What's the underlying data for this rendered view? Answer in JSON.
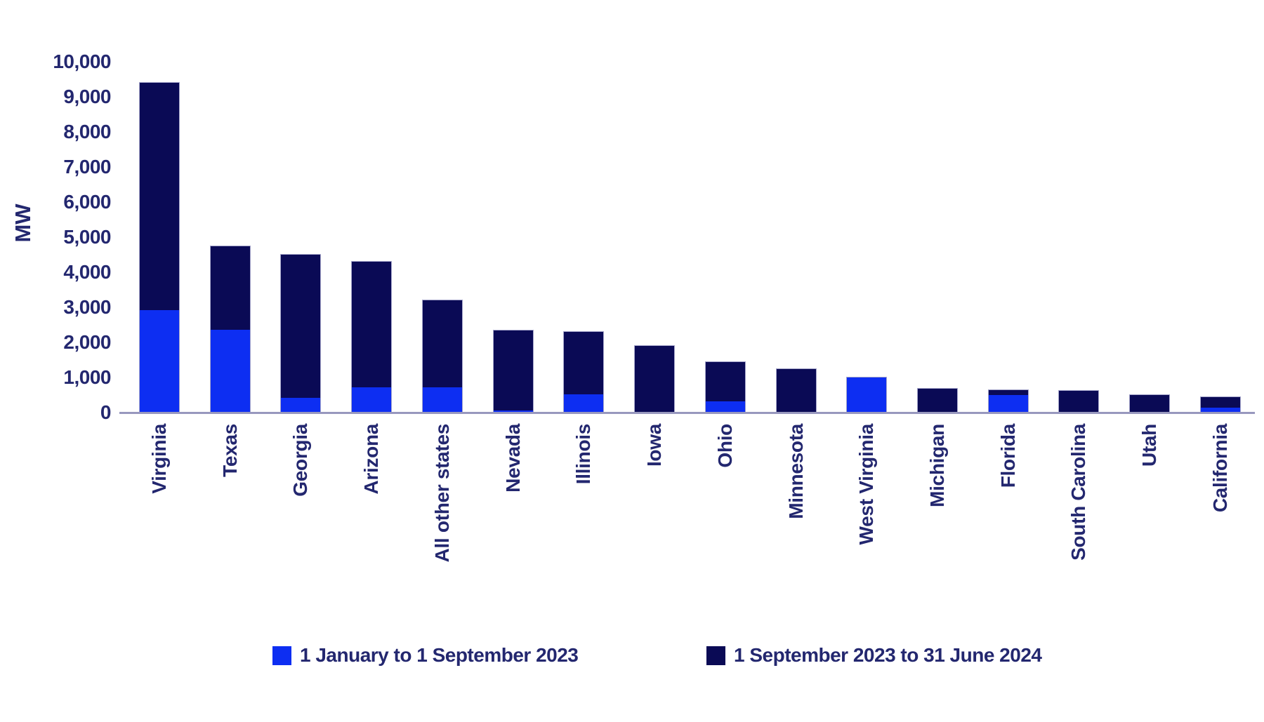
{
  "page": {
    "background": "#ffffff",
    "accent_blue": "#0d2ef2",
    "accent_navy": "#0a0a55",
    "text_color": "#23276f",
    "axis_line_color": "#9898be"
  },
  "chart_data": {
    "type": "bar",
    "stacked": true,
    "title": "",
    "xlabel": "",
    "ylabel": "MW",
    "ylim": [
      0,
      10000
    ],
    "ytick_step": 1000,
    "ytick_labels": [
      "0",
      "1,000",
      "2,000",
      "3,000",
      "4,000",
      "5,000",
      "6,000",
      "7,000",
      "8,000",
      "9,000",
      "10,000"
    ],
    "grid": false,
    "legend_position": "bottom",
    "categories": [
      "Virginia",
      "Texas",
      "Georgia",
      "Arizona",
      "All other states",
      "Nevada",
      "Illinois",
      "Iowa",
      "Ohio",
      "Minnesota",
      "West Virginia",
      "Michigan",
      "Florida",
      "South Carolina",
      "Utah",
      "California"
    ],
    "series": [
      {
        "name": "1 January to 1 September 2023",
        "color": "#0d2ef2",
        "values": [
          2900,
          2350,
          400,
          700,
          700,
          50,
          500,
          0,
          300,
          0,
          1000,
          0,
          475,
          0,
          0,
          125
        ]
      },
      {
        "name": "1 September 2023 to 31 June 2024",
        "color": "#0a0a55",
        "values": [
          6500,
          2400,
          4100,
          3600,
          2500,
          2300,
          1800,
          1900,
          1150,
          1250,
          0,
          675,
          175,
          625,
          500,
          325
        ]
      }
    ],
    "totals": [
      9400,
      4750,
      4500,
      4300,
      3200,
      2350,
      2300,
      1900,
      1450,
      1250,
      1000,
      675,
      650,
      625,
      500,
      450
    ]
  }
}
